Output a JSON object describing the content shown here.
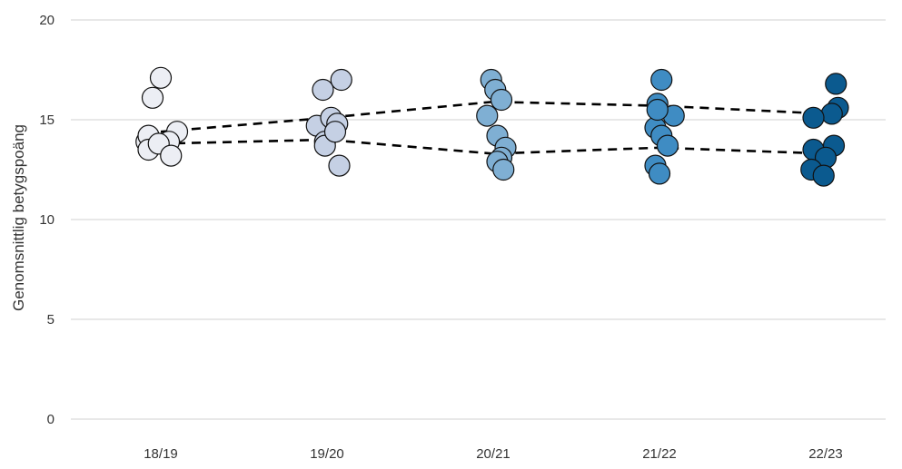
{
  "chart_data": {
    "type": "scatter",
    "title": "",
    "xlabel": "",
    "ylabel": "Genomsnittlig betygspoäng",
    "ylim": [
      0,
      20
    ],
    "yticks": [
      0,
      5,
      10,
      15,
      20
    ],
    "grid": "horizontal",
    "categories": [
      "18/19",
      "19/20",
      "20/21",
      "21/22",
      "22/23"
    ],
    "colors": [
      "#eceef4",
      "#c5d0e4",
      "#7fafd3",
      "#3f8cc3",
      "#0b5a8f"
    ],
    "series": [
      {
        "category": "18/19",
        "points": [
          {
            "dx": -0.35,
            "y": 13.9
          },
          {
            "dx": -0.3,
            "y": 14.2
          },
          {
            "dx": -0.3,
            "y": 13.5
          },
          {
            "dx": -0.2,
            "y": 16.1
          },
          {
            "dx": 0.0,
            "y": 17.1
          },
          {
            "dx": 0.4,
            "y": 14.4
          },
          {
            "dx": 0.2,
            "y": 13.9
          },
          {
            "dx": -0.05,
            "y": 13.8
          },
          {
            "dx": 0.25,
            "y": 13.2
          }
        ]
      },
      {
        "category": "19/20",
        "points": [
          {
            "dx": -0.25,
            "y": 14.7
          },
          {
            "dx": -0.1,
            "y": 16.5
          },
          {
            "dx": 0.35,
            "y": 17.0
          },
          {
            "dx": -0.05,
            "y": 13.9
          },
          {
            "dx": -0.05,
            "y": 13.7
          },
          {
            "dx": 0.1,
            "y": 15.1
          },
          {
            "dx": 0.25,
            "y": 14.8
          },
          {
            "dx": 0.2,
            "y": 14.4
          },
          {
            "dx": 0.3,
            "y": 12.7
          }
        ]
      },
      {
        "category": "20/21",
        "points": [
          {
            "dx": -0.05,
            "y": 17.0
          },
          {
            "dx": 0.05,
            "y": 16.5
          },
          {
            "dx": 0.2,
            "y": 16.0
          },
          {
            "dx": -0.15,
            "y": 15.2
          },
          {
            "dx": 0.1,
            "y": 14.2
          },
          {
            "dx": 0.3,
            "y": 13.6
          },
          {
            "dx": 0.2,
            "y": 13.1
          },
          {
            "dx": 0.1,
            "y": 12.9
          },
          {
            "dx": 0.25,
            "y": 12.5
          }
        ]
      },
      {
        "category": "21/22",
        "points": [
          {
            "dx": 0.05,
            "y": 17.0
          },
          {
            "dx": -0.05,
            "y": 15.8
          },
          {
            "dx": -0.1,
            "y": 14.6
          },
          {
            "dx": 0.35,
            "y": 15.2
          },
          {
            "dx": 0.05,
            "y": 14.2
          },
          {
            "dx": 0.2,
            "y": 13.7
          },
          {
            "dx": -0.1,
            "y": 12.7
          },
          {
            "dx": 0.0,
            "y": 12.3
          },
          {
            "dx": -0.05,
            "y": 15.5
          }
        ]
      },
      {
        "category": "22/23",
        "points": [
          {
            "dx": 0.25,
            "y": 16.8
          },
          {
            "dx": 0.3,
            "y": 15.6
          },
          {
            "dx": 0.15,
            "y": 15.3
          },
          {
            "dx": -0.3,
            "y": 15.1
          },
          {
            "dx": -0.3,
            "y": 13.5
          },
          {
            "dx": 0.2,
            "y": 13.7
          },
          {
            "dx": 0.0,
            "y": 13.1
          },
          {
            "dx": -0.35,
            "y": 12.5
          },
          {
            "dx": -0.05,
            "y": 12.2
          }
        ]
      }
    ],
    "trend_lines": [
      {
        "style": "dashed",
        "color": "#000000",
        "values": [
          14.4,
          15.1,
          15.9,
          15.7,
          15.3
        ]
      },
      {
        "style": "dashed",
        "color": "#000000",
        "values": [
          13.8,
          14.0,
          13.3,
          13.6,
          13.3
        ]
      }
    ]
  }
}
